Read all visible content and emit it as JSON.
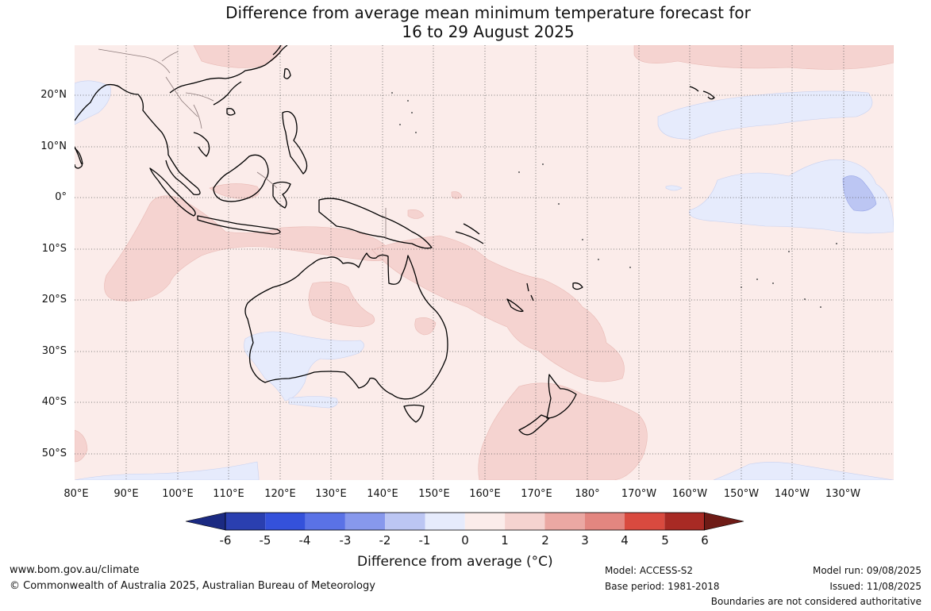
{
  "title": {
    "line1": "Difference from average mean minimum temperature forecast for",
    "line2": "16 to 29 August 2025"
  },
  "map": {
    "background_color": "#fbecea",
    "latitude_labels": [
      "20°N",
      "10°N",
      "0°",
      "10°S",
      "20°S",
      "30°S",
      "40°S",
      "50°S"
    ],
    "longitude_labels": [
      "80°E",
      "90°E",
      "100°E",
      "110°E",
      "120°E",
      "130°E",
      "140°E",
      "150°E",
      "160°E",
      "170°E",
      "180°",
      "170°W",
      "160°W",
      "150°W",
      "140°W",
      "130°W"
    ],
    "grid_lines": true
  },
  "colorbar": {
    "ticks": [
      "-6",
      "-5",
      "-4",
      "-3",
      "-2",
      "-1",
      "0",
      "1",
      "2",
      "3",
      "4",
      "5",
      "6"
    ],
    "colors": [
      "#1b2a82",
      "#2a3fb0",
      "#3451db",
      "#5a72e6",
      "#8798ec",
      "#bcc6f3",
      "#e6ebfc",
      "#fbecea",
      "#f5d3d0",
      "#eba8a3",
      "#e38680",
      "#d94a3f",
      "#a82a24",
      "#6e1b16"
    ],
    "label": "Difference from average (°C)"
  },
  "footer": {
    "website": "www.bom.gov.au/climate",
    "copyright": "© Commonwealth of Australia 2025, Australian Bureau of Meteorology",
    "model": "Model: ACCESS-S2",
    "base_period": "Base period: 1981-2018",
    "model_run": "Model run: 09/08/2025",
    "issued": "Issued: 11/08/2025",
    "disclaimer": "Boundaries are not considered authoritative"
  }
}
